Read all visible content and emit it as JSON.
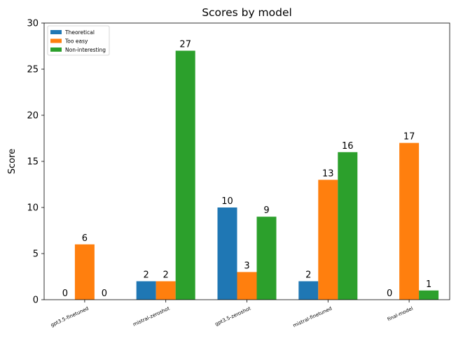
{
  "chart_data": {
    "type": "bar",
    "title": "Scores by model",
    "xlabel": "",
    "ylabel": "Score",
    "ylim": [
      0,
      30
    ],
    "yticks": [
      0,
      5,
      10,
      15,
      20,
      25,
      30
    ],
    "categories": [
      "gpt3.5-finetuned",
      "mistral-zeroshot",
      "gpt3.5-zeroshot",
      "mistral-finetuned",
      "final-model"
    ],
    "series": [
      {
        "name": "Theoretical",
        "color": "#1f77b4",
        "values": [
          0,
          2,
          10,
          2,
          0
        ]
      },
      {
        "name": "Too easy",
        "color": "#ff7f0e",
        "values": [
          6,
          2,
          3,
          13,
          17
        ]
      },
      {
        "name": "Non-interesting",
        "color": "#2ca02c",
        "values": [
          0,
          27,
          9,
          16,
          1
        ]
      }
    ],
    "legend_position": "top-left",
    "grid": false
  }
}
